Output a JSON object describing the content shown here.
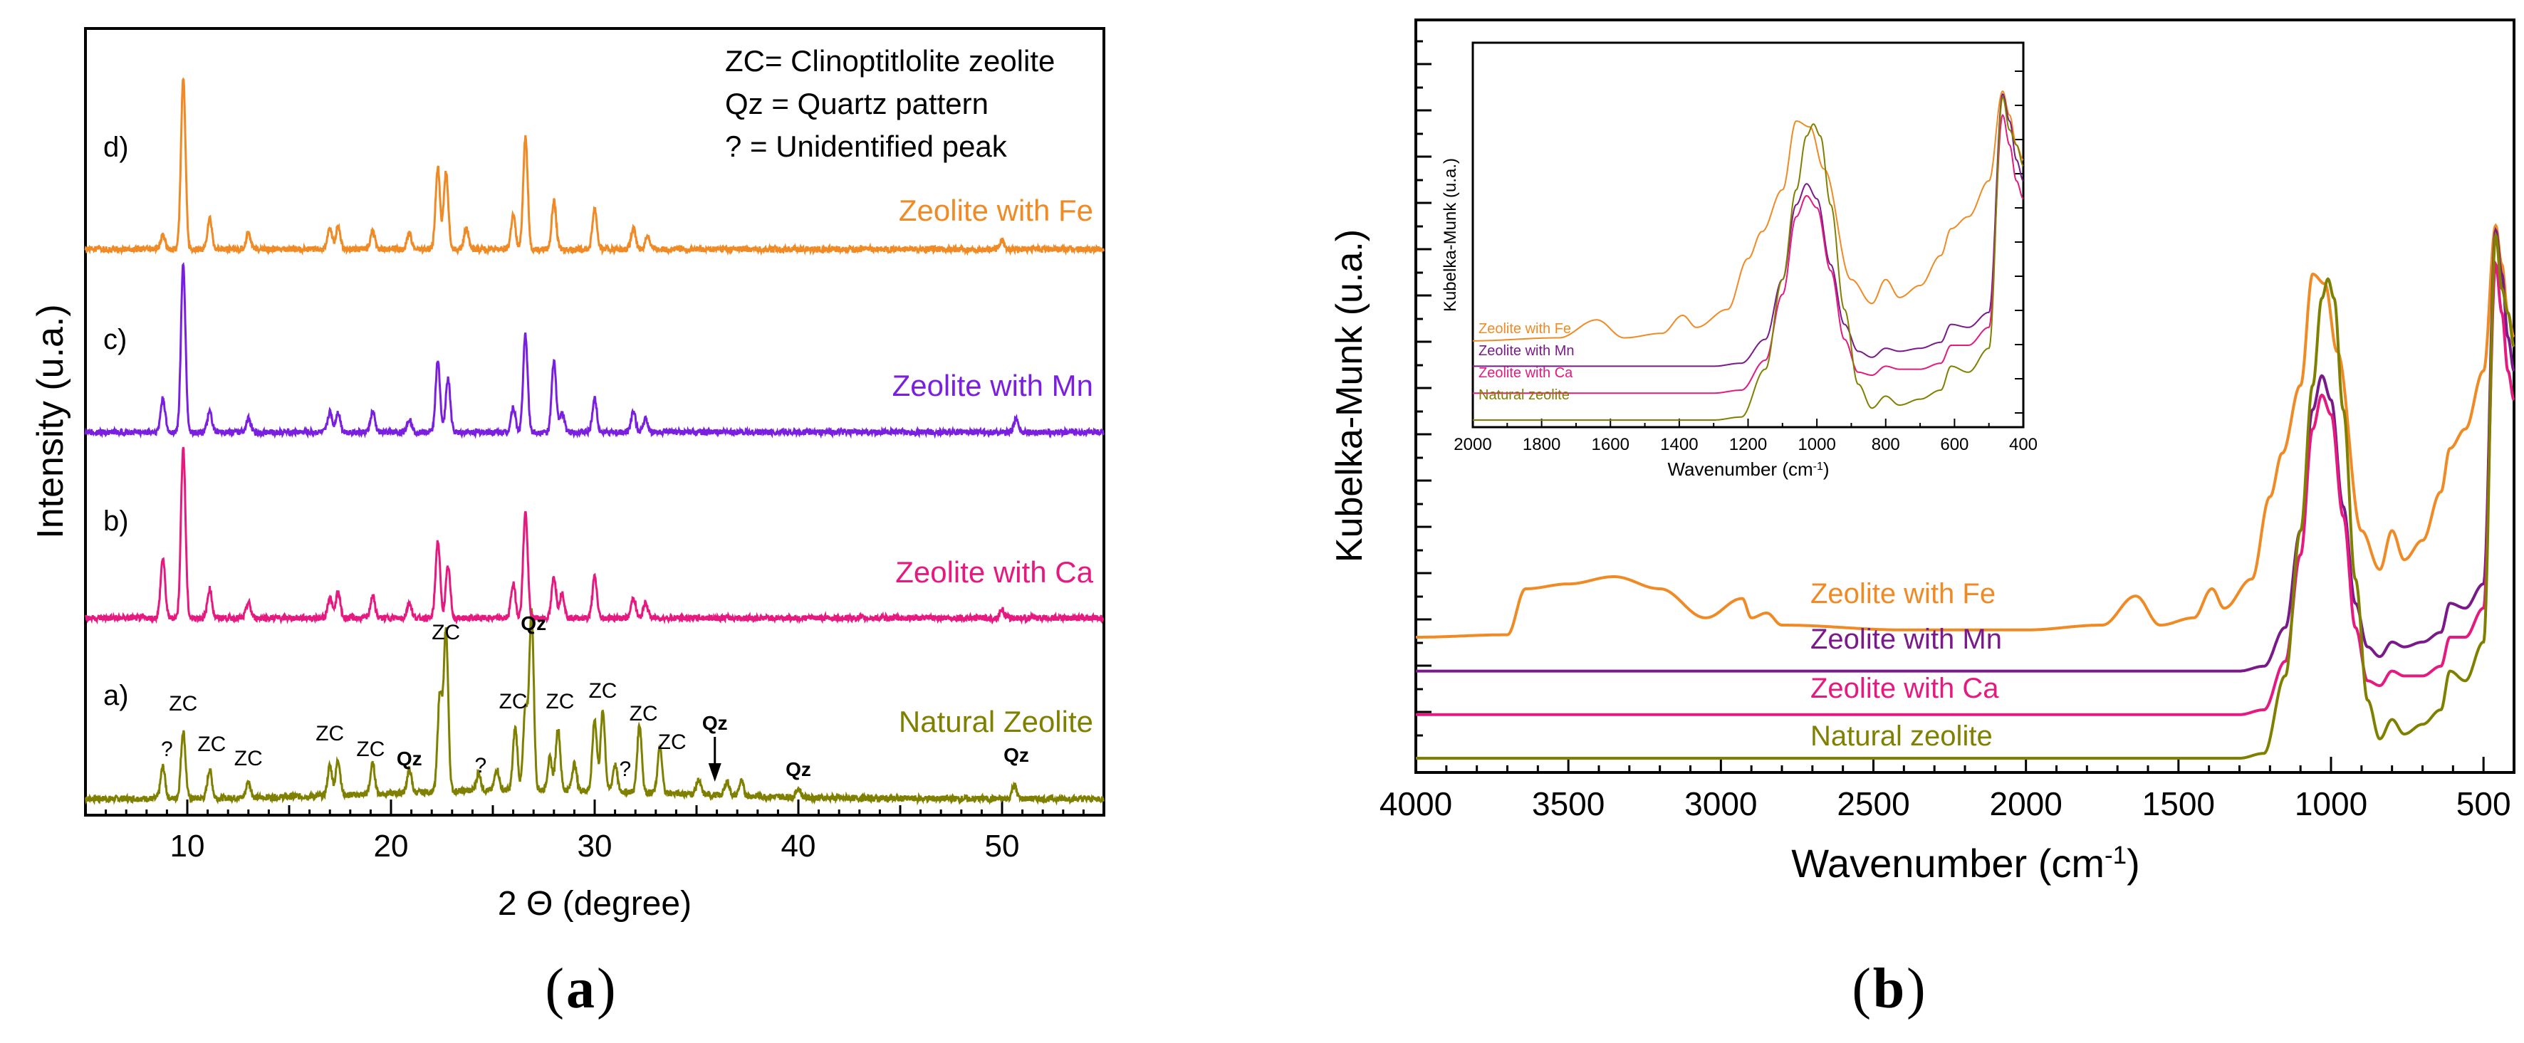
{
  "panels": {
    "a": {
      "label": "a"
    },
    "b": {
      "label": "b"
    }
  },
  "chart_data": [
    {
      "type": "line",
      "panel": "a",
      "xlabel": "2 Θ (degree)",
      "ylabel": "Intensity (u.a.)",
      "xlim": [
        5,
        55
      ],
      "xticks": [
        10,
        20,
        30,
        40,
        50
      ],
      "grid": false,
      "key_lines": [
        "ZC= Clinoptitlolite zeolite",
        "Qz = Quartz pattern",
        "? = Unidentified peak"
      ],
      "series": [
        {
          "name": "Natural Zeolite",
          "row_label": "a)",
          "color": "#808000",
          "peaks": [
            [
              8.8,
              0.18
            ],
            [
              9.8,
              0.38
            ],
            [
              11.1,
              0.16
            ],
            [
              13.0,
              0.09
            ],
            [
              17.0,
              0.17
            ],
            [
              17.4,
              0.2
            ],
            [
              19.1,
              0.17
            ],
            [
              20.9,
              0.13
            ],
            [
              22.4,
              0.55
            ],
            [
              22.7,
              0.9
            ],
            [
              24.3,
              0.1
            ],
            [
              25.2,
              0.12
            ],
            [
              26.1,
              0.35
            ],
            [
              26.6,
              0.45
            ],
            [
              26.9,
              1.0
            ],
            [
              27.8,
              0.18
            ],
            [
              28.2,
              0.35
            ],
            [
              29.0,
              0.15
            ],
            [
              30.0,
              0.4
            ],
            [
              30.4,
              0.45
            ],
            [
              31.0,
              0.15
            ],
            [
              32.2,
              0.38
            ],
            [
              33.2,
              0.25
            ],
            [
              35.1,
              0.08
            ],
            [
              36.5,
              0.08
            ],
            [
              37.2,
              0.08
            ],
            [
              40.0,
              0.05
            ],
            [
              50.6,
              0.08
            ]
          ]
        },
        {
          "name": "Zeolite with Ca",
          "row_label": "b)",
          "color": "#e5197f",
          "peaks": [
            [
              8.8,
              0.35
            ],
            [
              9.8,
              1.0
            ],
            [
              11.1,
              0.17
            ],
            [
              13.0,
              0.09
            ],
            [
              17.0,
              0.12
            ],
            [
              17.4,
              0.15
            ],
            [
              19.1,
              0.13
            ],
            [
              20.9,
              0.09
            ],
            [
              22.3,
              0.45
            ],
            [
              22.8,
              0.3
            ],
            [
              26.0,
              0.2
            ],
            [
              26.6,
              0.62
            ],
            [
              28.0,
              0.24
            ],
            [
              28.4,
              0.15
            ],
            [
              30.0,
              0.24
            ],
            [
              31.9,
              0.12
            ],
            [
              32.5,
              0.09
            ],
            [
              50.0,
              0.05
            ]
          ]
        },
        {
          "name": "Zeolite with Mn",
          "row_label": "c)",
          "color": "#7a1fe0",
          "peaks": [
            [
              8.8,
              0.2
            ],
            [
              9.8,
              1.0
            ],
            [
              11.1,
              0.12
            ],
            [
              13.0,
              0.08
            ],
            [
              17.0,
              0.12
            ],
            [
              17.4,
              0.12
            ],
            [
              19.1,
              0.12
            ],
            [
              20.9,
              0.08
            ],
            [
              22.3,
              0.42
            ],
            [
              22.8,
              0.32
            ],
            [
              26.0,
              0.15
            ],
            [
              26.6,
              0.58
            ],
            [
              28.0,
              0.42
            ],
            [
              28.4,
              0.12
            ],
            [
              30.0,
              0.2
            ],
            [
              31.9,
              0.12
            ],
            [
              32.5,
              0.08
            ],
            [
              50.7,
              0.08
            ]
          ]
        },
        {
          "name": "Zeolite with Fe",
          "row_label": "d)",
          "color": "#f08a24",
          "peaks": [
            [
              8.8,
              0.08
            ],
            [
              9.8,
              1.0
            ],
            [
              11.1,
              0.18
            ],
            [
              13.0,
              0.1
            ],
            [
              17.0,
              0.12
            ],
            [
              17.4,
              0.13
            ],
            [
              19.1,
              0.11
            ],
            [
              20.9,
              0.09
            ],
            [
              22.3,
              0.48
            ],
            [
              22.7,
              0.45
            ],
            [
              23.7,
              0.12
            ],
            [
              26.0,
              0.2
            ],
            [
              26.6,
              0.66
            ],
            [
              28.0,
              0.28
            ],
            [
              30.0,
              0.24
            ],
            [
              31.9,
              0.12
            ],
            [
              32.6,
              0.08
            ],
            [
              50.0,
              0.05
            ]
          ]
        }
      ],
      "annotations": [
        {
          "text": "?",
          "x": 9.0
        },
        {
          "text": "ZC",
          "x": 9.8
        },
        {
          "text": "ZC",
          "x": 11.2
        },
        {
          "text": "ZC",
          "x": 13.0
        },
        {
          "text": "ZC",
          "x": 17.0
        },
        {
          "text": "ZC",
          "x": 19.0
        },
        {
          "text": "Qz",
          "x": 20.9
        },
        {
          "text": "ZC",
          "x": 22.7
        },
        {
          "text": "?",
          "x": 24.4
        },
        {
          "text": "Qz",
          "x": 27.0
        },
        {
          "text": "ZC",
          "x": 26.0
        },
        {
          "text": "ZC",
          "x": 28.3
        },
        {
          "text": "ZC",
          "x": 30.4
        },
        {
          "text": "?",
          "x": 31.5
        },
        {
          "text": "ZC",
          "x": 32.4
        },
        {
          "text": "ZC",
          "x": 33.8
        },
        {
          "text": "Qz",
          "x": 35.9
        },
        {
          "text": "Qz",
          "x": 40.0
        },
        {
          "text": "Qz",
          "x": 50.7
        }
      ]
    },
    {
      "type": "line",
      "panel": "b",
      "xlabel": "Wavenumber (cm⁻¹)",
      "ylabel": "Kubelka-Munk (u.a.)",
      "xlim": [
        4000,
        400
      ],
      "xticks": [
        4000,
        3500,
        3000,
        2500,
        2000,
        1500,
        1000,
        500
      ],
      "grid": false,
      "series": [
        {
          "name": "Zeolite with Fe",
          "color": "#f08a24",
          "points": [
            [
              4000,
              0.23
            ],
            [
              3700,
              0.235
            ],
            [
              3640,
              0.33
            ],
            [
              3500,
              0.34
            ],
            [
              3350,
              0.355
            ],
            [
              3200,
              0.33
            ],
            [
              3050,
              0.27
            ],
            [
              2930,
              0.31
            ],
            [
              2900,
              0.27
            ],
            [
              2850,
              0.28
            ],
            [
              2800,
              0.255
            ],
            [
              2400,
              0.245
            ],
            [
              2000,
              0.245
            ],
            [
              1750,
              0.255
            ],
            [
              1640,
              0.315
            ],
            [
              1560,
              0.255
            ],
            [
              1450,
              0.27
            ],
            [
              1390,
              0.33
            ],
            [
              1350,
              0.29
            ],
            [
              1260,
              0.35
            ],
            [
              1200,
              0.52
            ],
            [
              1160,
              0.61
            ],
            [
              1100,
              0.75
            ],
            [
              1060,
              0.98
            ],
            [
              1020,
              0.96
            ],
            [
              980,
              0.82
            ],
            [
              900,
              0.45
            ],
            [
              840,
              0.37
            ],
            [
              800,
              0.45
            ],
            [
              760,
              0.39
            ],
            [
              700,
              0.43
            ],
            [
              640,
              0.53
            ],
            [
              610,
              0.62
            ],
            [
              560,
              0.66
            ],
            [
              500,
              0.78
            ],
            [
              460,
              1.08
            ],
            [
              440,
              1.0
            ],
            [
              420,
              0.9
            ],
            [
              400,
              0.85
            ]
          ]
        },
        {
          "name": "Zeolite with Mn",
          "color": "#7a1a8a",
          "points": [
            [
              4000,
              0.16
            ],
            [
              1300,
              0.16
            ],
            [
              1220,
              0.17
            ],
            [
              1150,
              0.25
            ],
            [
              1100,
              0.45
            ],
            [
              1060,
              0.7
            ],
            [
              1030,
              0.77
            ],
            [
              1000,
              0.72
            ],
            [
              960,
              0.5
            ],
            [
              920,
              0.3
            ],
            [
              880,
              0.21
            ],
            [
              840,
              0.19
            ],
            [
              800,
              0.22
            ],
            [
              760,
              0.21
            ],
            [
              700,
              0.22
            ],
            [
              640,
              0.24
            ],
            [
              610,
              0.3
            ],
            [
              560,
              0.29
            ],
            [
              500,
              0.34
            ],
            [
              460,
              1.07
            ],
            [
              440,
              0.98
            ],
            [
              420,
              0.85
            ],
            [
              400,
              0.78
            ]
          ]
        },
        {
          "name": "Zeolite with Ca",
          "color": "#e5197f",
          "points": [
            [
              4000,
              0.07
            ],
            [
              1300,
              0.07
            ],
            [
              1220,
              0.08
            ],
            [
              1150,
              0.18
            ],
            [
              1100,
              0.4
            ],
            [
              1060,
              0.66
            ],
            [
              1030,
              0.73
            ],
            [
              1000,
              0.69
            ],
            [
              960,
              0.48
            ],
            [
              920,
              0.25
            ],
            [
              880,
              0.14
            ],
            [
              840,
              0.13
            ],
            [
              800,
              0.16
            ],
            [
              760,
              0.15
            ],
            [
              700,
              0.15
            ],
            [
              640,
              0.17
            ],
            [
              610,
              0.23
            ],
            [
              560,
              0.23
            ],
            [
              500,
              0.29
            ],
            [
              460,
              1.0
            ],
            [
              440,
              0.9
            ],
            [
              420,
              0.78
            ],
            [
              400,
              0.72
            ]
          ]
        },
        {
          "name": "Natural zeolite",
          "color": "#808000",
          "points": [
            [
              4000,
              -0.02
            ],
            [
              1300,
              -0.02
            ],
            [
              1220,
              -0.01
            ],
            [
              1150,
              0.15
            ],
            [
              1100,
              0.45
            ],
            [
              1060,
              0.75
            ],
            [
              1030,
              0.93
            ],
            [
              1010,
              0.97
            ],
            [
              990,
              0.93
            ],
            [
              960,
              0.7
            ],
            [
              920,
              0.35
            ],
            [
              880,
              0.1
            ],
            [
              840,
              0.02
            ],
            [
              800,
              0.06
            ],
            [
              760,
              0.03
            ],
            [
              700,
              0.05
            ],
            [
              640,
              0.08
            ],
            [
              610,
              0.16
            ],
            [
              560,
              0.14
            ],
            [
              500,
              0.22
            ],
            [
              460,
              1.06
            ],
            [
              440,
              0.95
            ],
            [
              420,
              0.9
            ],
            [
              400,
              0.83
            ]
          ]
        }
      ],
      "inset": {
        "xlabel": "Wavenumber (cm⁻¹)",
        "ylabel": "Kubelka-Munk (u.a.)",
        "xlim": [
          2000,
          400
        ],
        "xticks": [
          2000,
          1800,
          1600,
          1400,
          1200,
          1000,
          800,
          600,
          400
        ],
        "legend": [
          "Zeolite with Fe",
          "Zeolite with Mn",
          "Zeolite with Ca",
          "Natural zeolite"
        ]
      }
    }
  ]
}
